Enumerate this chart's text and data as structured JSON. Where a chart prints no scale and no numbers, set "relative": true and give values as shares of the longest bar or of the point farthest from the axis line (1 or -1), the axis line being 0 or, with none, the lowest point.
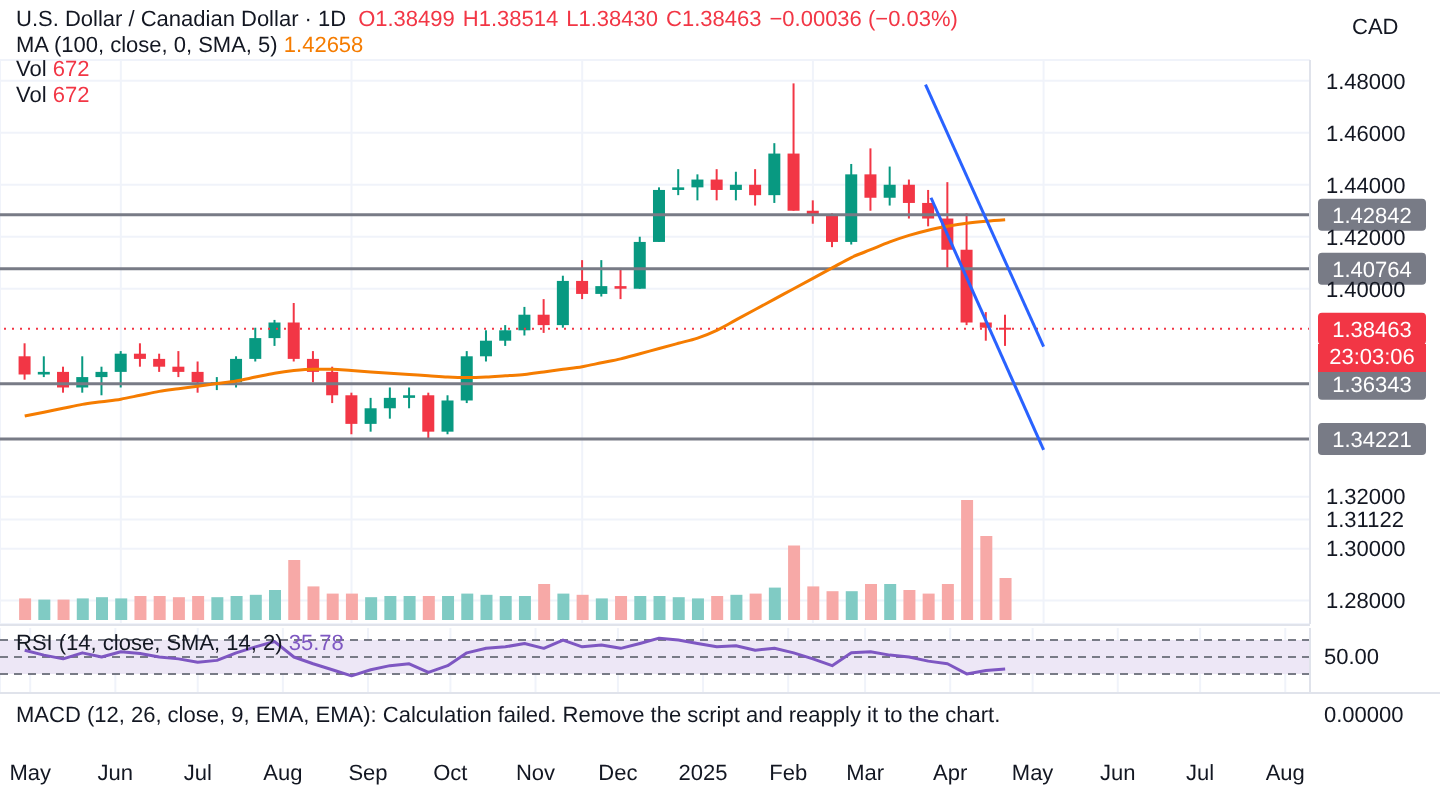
{
  "chart_data": [
    {
      "type": "candlestick",
      "title": "U.S. Dollar / Canadian Dollar · 1D",
      "ylabel": "CAD",
      "annotations": [
        "O1.38499",
        "H1.38514",
        "L1.38430",
        "C1.38463",
        "−0.00036 (−0.03%)",
        "MA (100, close, 0, SMA, 5)",
        "1.42658",
        "Vol",
        "672",
        "Vol",
        "672",
        "23:03:06"
      ],
      "x": [
        "2024-04-29",
        "2024-05-06",
        "2024-05-13",
        "2024-05-20",
        "2024-05-27",
        "2024-06-03",
        "2024-06-10",
        "2024-06-17",
        "2024-06-24",
        "2024-07-01",
        "2024-07-08",
        "2024-07-15",
        "2024-07-22",
        "2024-07-29",
        "2024-08-05",
        "2024-08-12",
        "2024-08-19",
        "2024-08-26",
        "2024-09-02",
        "2024-09-09",
        "2024-09-16",
        "2024-09-23",
        "2024-09-30",
        "2024-10-07",
        "2024-10-14",
        "2024-10-21",
        "2024-10-28",
        "2024-11-04",
        "2024-11-11",
        "2024-11-18",
        "2024-11-25",
        "2024-12-02",
        "2024-12-09",
        "2024-12-16",
        "2024-12-23",
        "2024-12-30",
        "2025-01-06",
        "2025-01-13",
        "2025-01-20",
        "2025-01-27",
        "2025-02-03",
        "2025-02-10",
        "2025-02-17",
        "2025-02-24",
        "2025-03-03",
        "2025-03-10",
        "2025-03-17",
        "2025-03-24",
        "2025-03-31",
        "2025-04-07",
        "2025-04-14",
        "2025-04-21"
      ],
      "ohlc": [
        [
          1.374,
          1.379,
          1.365,
          1.367
        ],
        [
          1.367,
          1.374,
          1.366,
          1.368
        ],
        [
          1.368,
          1.37,
          1.36,
          1.362
        ],
        [
          1.362,
          1.374,
          1.36,
          1.366
        ],
        [
          1.366,
          1.37,
          1.359,
          1.368
        ],
        [
          1.368,
          1.376,
          1.362,
          1.375
        ],
        [
          1.375,
          1.379,
          1.37,
          1.373
        ],
        [
          1.373,
          1.375,
          1.368,
          1.37
        ],
        [
          1.37,
          1.376,
          1.366,
          1.368
        ],
        [
          1.368,
          1.372,
          1.36,
          1.364
        ],
        [
          1.364,
          1.366,
          1.361,
          1.364
        ],
        [
          1.364,
          1.374,
          1.362,
          1.373
        ],
        [
          1.373,
          1.385,
          1.372,
          1.381
        ],
        [
          1.381,
          1.388,
          1.378,
          1.387
        ],
        [
          1.387,
          1.3945,
          1.372,
          1.373
        ],
        [
          1.373,
          1.376,
          1.364,
          1.368
        ],
        [
          1.368,
          1.37,
          1.356,
          1.359
        ],
        [
          1.359,
          1.36,
          1.344,
          1.348
        ],
        [
          1.348,
          1.358,
          1.345,
          1.354
        ],
        [
          1.354,
          1.362,
          1.35,
          1.358
        ],
        [
          1.358,
          1.362,
          1.354,
          1.359
        ],
        [
          1.359,
          1.36,
          1.342,
          1.345
        ],
        [
          1.345,
          1.359,
          1.344,
          1.357
        ],
        [
          1.357,
          1.376,
          1.356,
          1.374
        ],
        [
          1.374,
          1.384,
          1.372,
          1.38
        ],
        [
          1.38,
          1.386,
          1.378,
          1.384
        ],
        [
          1.384,
          1.393,
          1.382,
          1.39
        ],
        [
          1.39,
          1.396,
          1.383,
          1.386
        ],
        [
          1.386,
          1.405,
          1.385,
          1.403
        ],
        [
          1.403,
          1.411,
          1.396,
          1.398
        ],
        [
          1.398,
          1.411,
          1.397,
          1.401
        ],
        [
          1.401,
          1.408,
          1.396,
          1.4
        ],
        [
          1.4,
          1.42,
          1.4,
          1.418
        ],
        [
          1.418,
          1.439,
          1.418,
          1.438
        ],
        [
          1.438,
          1.446,
          1.436,
          1.439
        ],
        [
          1.439,
          1.444,
          1.434,
          1.442
        ],
        [
          1.442,
          1.446,
          1.434,
          1.438
        ],
        [
          1.438,
          1.445,
          1.434,
          1.44
        ],
        [
          1.44,
          1.446,
          1.432,
          1.436
        ],
        [
          1.436,
          1.456,
          1.433,
          1.452
        ],
        [
          1.452,
          1.479,
          1.43,
          1.43
        ],
        [
          1.43,
          1.434,
          1.425,
          1.428
        ],
        [
          1.428,
          1.429,
          1.416,
          1.418
        ],
        [
          1.418,
          1.448,
          1.417,
          1.444
        ],
        [
          1.444,
          1.454,
          1.43,
          1.435
        ],
        [
          1.435,
          1.447,
          1.432,
          1.44
        ],
        [
          1.44,
          1.442,
          1.427,
          1.433
        ],
        [
          1.433,
          1.438,
          1.424,
          1.427
        ],
        [
          1.427,
          1.441,
          1.408,
          1.415
        ],
        [
          1.415,
          1.429,
          1.386,
          1.387
        ],
        [
          1.387,
          1.391,
          1.38,
          1.385
        ],
        [
          1.385,
          1.39,
          1.378,
          1.38463
        ]
      ],
      "colors": [
        "#f23645",
        "#089981",
        "#f23645",
        "#089981",
        "#089981",
        "#089981",
        "#f23645",
        "#f23645",
        "#f23645",
        "#f23645",
        "#089981",
        "#089981",
        "#089981",
        "#089981",
        "#f23645",
        "#f23645",
        "#f23645",
        "#f23645",
        "#089981",
        "#089981",
        "#089981",
        "#f23645",
        "#089981",
        "#089981",
        "#089981",
        "#089981",
        "#089981",
        "#f23645",
        "#089981",
        "#f23645",
        "#089981",
        "#f23645",
        "#089981",
        "#089981",
        "#089981",
        "#089981",
        "#f23645",
        "#089981",
        "#f23645",
        "#089981",
        "#f23645",
        "#f23645",
        "#f23645",
        "#089981",
        "#f23645",
        "#089981",
        "#f23645",
        "#f23645",
        "#f23645",
        "#f23645",
        "#f23645",
        "#f23645"
      ],
      "series": [
        {
          "type": "line",
          "color": "#f57c00",
          "x": [
            "2024-04-29",
            "2024-05-06",
            "2024-05-13",
            "2024-05-20",
            "2024-05-27",
            "2024-06-03",
            "2024-06-10",
            "2024-06-17",
            "2024-06-24",
            "2024-07-01",
            "2024-07-08",
            "2024-07-15",
            "2024-07-22",
            "2024-07-29",
            "2024-08-05",
            "2024-08-12",
            "2024-08-19",
            "2024-08-26",
            "2024-09-02",
            "2024-09-09",
            "2024-09-16",
            "2024-09-23",
            "2024-09-30",
            "2024-10-07",
            "2024-10-14",
            "2024-10-21",
            "2024-10-28",
            "2024-11-04",
            "2024-11-11",
            "2024-11-18",
            "2024-11-25",
            "2024-12-02",
            "2024-12-09",
            "2024-12-16",
            "2024-12-23",
            "2024-12-30",
            "2025-01-06",
            "2025-01-13",
            "2025-01-20",
            "2025-01-27",
            "2025-02-03",
            "2025-02-10",
            "2025-02-17",
            "2025-02-24",
            "2025-03-03",
            "2025-03-10",
            "2025-03-17",
            "2025-03-24",
            "2025-03-31",
            "2025-04-07",
            "2025-04-14",
            "2025-04-21"
          ],
          "values": [
            1.351,
            1.3525,
            1.354,
            1.3555,
            1.3565,
            1.3575,
            1.359,
            1.3605,
            1.3615,
            1.3625,
            1.3635,
            1.3645,
            1.366,
            1.3675,
            1.3685,
            1.369,
            1.369,
            1.3685,
            1.368,
            1.3675,
            1.367,
            1.3665,
            1.366,
            1.3658,
            1.366,
            1.3665,
            1.367,
            1.368,
            1.369,
            1.37,
            1.3715,
            1.373,
            1.375,
            1.377,
            1.379,
            1.381,
            1.384,
            1.388,
            1.392,
            1.396,
            1.4,
            1.404,
            1.408,
            1.412,
            1.415,
            1.418,
            1.4205,
            1.4225,
            1.424,
            1.4252,
            1.426,
            1.42658
          ]
        },
        {
          "type": "line",
          "color": "#2962ff",
          "x": [
            "2025-03-23",
            "2025-05-05"
          ],
          "values": [
            1.4785,
            1.3777
          ]
        },
        {
          "type": "line",
          "color": "#2962ff",
          "x": [
            "2025-03-25",
            "2025-05-05"
          ],
          "values": [
            1.435,
            1.338
          ]
        }
      ],
      "ref_lines": [
        {
          "axis": "y",
          "value": 1.42842,
          "label": "1.42842",
          "color": "#787b86"
        },
        {
          "axis": "y",
          "value": 1.40764,
          "label": "1.40764",
          "color": "#787b86"
        },
        {
          "axis": "y",
          "value": 1.36343,
          "label": "1.36343",
          "color": "#787b86"
        },
        {
          "axis": "y",
          "value": 1.34221,
          "label": "1.34221",
          "color": "#787b86"
        },
        {
          "axis": "y",
          "value": 1.38463,
          "label": "1.38463",
          "color": "#f23645",
          "line_style": "dotted"
        }
      ],
      "xlim": [
        "2024-04-20",
        "2025-08-10"
      ],
      "ylim": [
        1.271,
        1.488
      ],
      "yticks": [
        {
          "value": 1.28,
          "label": "1.28000"
        },
        {
          "value": 1.3,
          "label": "1.30000"
        },
        {
          "value": 1.31122,
          "label": "1.31122"
        },
        {
          "value": 1.32,
          "label": "1.32000"
        },
        {
          "value": 1.4,
          "label": "1.40000"
        },
        {
          "value": 1.42,
          "label": "1.42000"
        },
        {
          "value": 1.44,
          "label": "1.44000"
        },
        {
          "value": 1.46,
          "label": "1.46000"
        },
        {
          "value": 1.48,
          "label": "1.48000"
        }
      ],
      "grid": true,
      "tick_labels": "y"
    },
    {
      "type": "bar",
      "relative": true,
      "x": [
        "2024-04-29",
        "2024-05-06",
        "2024-05-13",
        "2024-05-20",
        "2024-05-27",
        "2024-06-03",
        "2024-06-10",
        "2024-06-17",
        "2024-06-24",
        "2024-07-01",
        "2024-07-08",
        "2024-07-15",
        "2024-07-22",
        "2024-07-29",
        "2024-08-05",
        "2024-08-12",
        "2024-08-19",
        "2024-08-26",
        "2024-09-02",
        "2024-09-09",
        "2024-09-16",
        "2024-09-23",
        "2024-09-30",
        "2024-10-07",
        "2024-10-14",
        "2024-10-21",
        "2024-10-28",
        "2024-11-04",
        "2024-11-11",
        "2024-11-18",
        "2024-11-25",
        "2024-12-02",
        "2024-12-09",
        "2024-12-16",
        "2024-12-23",
        "2024-12-30",
        "2025-01-06",
        "2025-01-13",
        "2025-01-20",
        "2025-01-27",
        "2025-02-03",
        "2025-02-10",
        "2025-02-17",
        "2025-02-24",
        "2025-03-03",
        "2025-03-10",
        "2025-03-17",
        "2025-03-24",
        "2025-03-31",
        "2025-04-07",
        "2025-04-14",
        "2025-04-21"
      ],
      "values": [
        0.18,
        0.17,
        0.17,
        0.18,
        0.19,
        0.18,
        0.2,
        0.2,
        0.19,
        0.2,
        0.19,
        0.2,
        0.21,
        0.25,
        0.5,
        0.28,
        0.22,
        0.22,
        0.19,
        0.2,
        0.2,
        0.2,
        0.2,
        0.22,
        0.21,
        0.2,
        0.2,
        0.3,
        0.22,
        0.21,
        0.18,
        0.2,
        0.2,
        0.2,
        0.19,
        0.18,
        0.2,
        0.21,
        0.22,
        0.27,
        0.62,
        0.28,
        0.24,
        0.24,
        0.3,
        0.3,
        0.25,
        0.22,
        0.3,
        1,
        0.7,
        0.35
      ],
      "colors": [
        "#f7a9a7",
        "#80cbc4",
        "#f7a9a7",
        "#80cbc4",
        "#80cbc4",
        "#80cbc4",
        "#f7a9a7",
        "#f7a9a7",
        "#f7a9a7",
        "#f7a9a7",
        "#80cbc4",
        "#80cbc4",
        "#80cbc4",
        "#80cbc4",
        "#f7a9a7",
        "#f7a9a7",
        "#f7a9a7",
        "#f7a9a7",
        "#80cbc4",
        "#80cbc4",
        "#80cbc4",
        "#f7a9a7",
        "#80cbc4",
        "#80cbc4",
        "#80cbc4",
        "#80cbc4",
        "#80cbc4",
        "#f7a9a7",
        "#80cbc4",
        "#f7a9a7",
        "#80cbc4",
        "#f7a9a7",
        "#80cbc4",
        "#80cbc4",
        "#80cbc4",
        "#80cbc4",
        "#f7a9a7",
        "#80cbc4",
        "#f7a9a7",
        "#80cbc4",
        "#f7a9a7",
        "#f7a9a7",
        "#f7a9a7",
        "#80cbc4",
        "#f7a9a7",
        "#80cbc4",
        "#f7a9a7",
        "#f7a9a7",
        "#f7a9a7",
        "#f7a9a7",
        "#f7a9a7",
        "#f7a9a7"
      ],
      "xlim": [
        "2024-04-20",
        "2025-08-10"
      ],
      "tick_labels": false
    },
    {
      "type": "line",
      "relative": true,
      "title": "RSI (14, close, SMA, 14, 2)",
      "annotations": [
        "35.78",
        "50.00"
      ],
      "x": [
        "2024-04-29",
        "2024-05-06",
        "2024-05-13",
        "2024-05-20",
        "2024-05-27",
        "2024-06-03",
        "2024-06-10",
        "2024-06-17",
        "2024-06-24",
        "2024-07-01",
        "2024-07-08",
        "2024-07-15",
        "2024-07-22",
        "2024-07-29",
        "2024-08-05",
        "2024-08-12",
        "2024-08-19",
        "2024-08-26",
        "2024-09-02",
        "2024-09-09",
        "2024-09-16",
        "2024-09-23",
        "2024-09-30",
        "2024-10-07",
        "2024-10-14",
        "2024-10-21",
        "2024-10-28",
        "2024-11-04",
        "2024-11-11",
        "2024-11-18",
        "2024-11-25",
        "2024-12-02",
        "2024-12-09",
        "2024-12-16",
        "2024-12-23",
        "2024-12-30",
        "2025-01-06",
        "2025-01-13",
        "2025-01-20",
        "2025-01-27",
        "2025-02-03",
        "2025-02-10",
        "2025-02-17",
        "2025-02-24",
        "2025-03-03",
        "2025-03-10",
        "2025-03-17",
        "2025-03-24",
        "2025-03-31",
        "2025-04-07",
        "2025-04-14",
        "2025-04-21"
      ],
      "series": [
        {
          "color": "#7e57c2",
          "values": [
            0.68,
            0.55,
            0.45,
            0.61,
            0.5,
            0.64,
            0.59,
            0.5,
            0.45,
            0.36,
            0.41,
            0.61,
            0.77,
            0.91,
            0.5,
            0.32,
            0.16,
            0,
            0.16,
            0.27,
            0.32,
            0.09,
            0.27,
            0.61,
            0.73,
            0.77,
            0.86,
            0.73,
            0.95,
            0.77,
            0.82,
            0.73,
            0.86,
            1,
            0.95,
            0.86,
            0.77,
            0.8,
            0.68,
            0.73,
            0.61,
            0.45,
            0.27,
            0.61,
            0.64,
            0.55,
            0.5,
            0.39,
            0.32,
            0.05,
            0.14,
            0.18
          ]
        }
      ],
      "bands": [
        {
          "axis": "y",
          "from": 0.05,
          "to": 0.95,
          "color": "#ede7f6"
        }
      ],
      "ref_lines": [
        {
          "axis": "y",
          "value": 0.95,
          "color": "#787b86",
          "line_style": "dashed"
        },
        {
          "axis": "y",
          "value": 0.5,
          "color": "#787b86",
          "line_style": "dashed"
        },
        {
          "axis": "y",
          "value": 0.05,
          "color": "#787b86",
          "line_style": "dashed"
        }
      ],
      "xlim": [
        "2024-04-20",
        "2025-08-10"
      ],
      "xticks": [
        {
          "value": "2024-05-01",
          "label": "May"
        },
        {
          "value": "2024-06-01",
          "label": "Jun"
        },
        {
          "value": "2024-07-01",
          "label": "Jul"
        },
        {
          "value": "2024-08-01",
          "label": "Aug"
        },
        {
          "value": "2024-09-01",
          "label": "Sep"
        },
        {
          "value": "2024-10-01",
          "label": "Oct"
        },
        {
          "value": "2024-11-01",
          "label": "Nov"
        },
        {
          "value": "2024-12-01",
          "label": "Dec"
        },
        {
          "value": "2025-01-01",
          "label": "2025"
        },
        {
          "value": "2025-02-01",
          "label": "Feb"
        },
        {
          "value": "2025-03-01",
          "label": "Mar"
        },
        {
          "value": "2025-04-01",
          "label": "Apr"
        },
        {
          "value": "2025-05-01",
          "label": "May"
        },
        {
          "value": "2025-06-01",
          "label": "Jun"
        },
        {
          "value": "2025-07-01",
          "label": "Jul"
        },
        {
          "value": "2025-08-01",
          "label": "Aug"
        }
      ],
      "grid": "x",
      "marker": "none",
      "line_style": "solid"
    },
    {
      "type": "other",
      "title": "MACD (12, 26, close, 9, EMA, EMA): Calculation failed. Remove the script and reapply it to the chart.",
      "annotations": [
        "0.00000"
      ]
    }
  ]
}
